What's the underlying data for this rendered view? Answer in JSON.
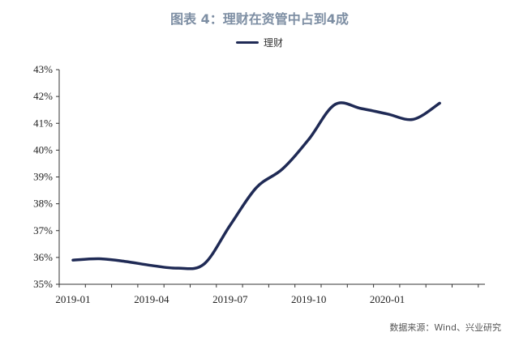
{
  "chart_data": {
    "type": "line",
    "title": "图表 4：理财在资管中占到4成",
    "series": [
      {
        "name": "理财",
        "color": "#1f2a55",
        "x": [
          "2019-01",
          "2019-02",
          "2019-03",
          "2019-04",
          "2019-05",
          "2019-06",
          "2019-07",
          "2019-08",
          "2019-09",
          "2019-10",
          "2019-11",
          "2019-12",
          "2020-01",
          "2020-02",
          "2020-03"
        ],
        "values": [
          35.9,
          35.95,
          35.85,
          35.7,
          35.6,
          35.75,
          37.2,
          38.6,
          39.3,
          40.4,
          41.7,
          41.55,
          41.35,
          41.15,
          41.75
        ]
      }
    ],
    "x_tick_labels": [
      "2019-01",
      "2019-04",
      "2019-07",
      "2019-10",
      "2020-01"
    ],
    "y_tick_labels": [
      "35%",
      "36%",
      "37%",
      "38%",
      "39%",
      "40%",
      "41%",
      "42%",
      "43%"
    ],
    "ylim": [
      35,
      43
    ],
    "grid": false,
    "legend_position": "top-center"
  },
  "source": "数据来源：Wind、兴业研究"
}
